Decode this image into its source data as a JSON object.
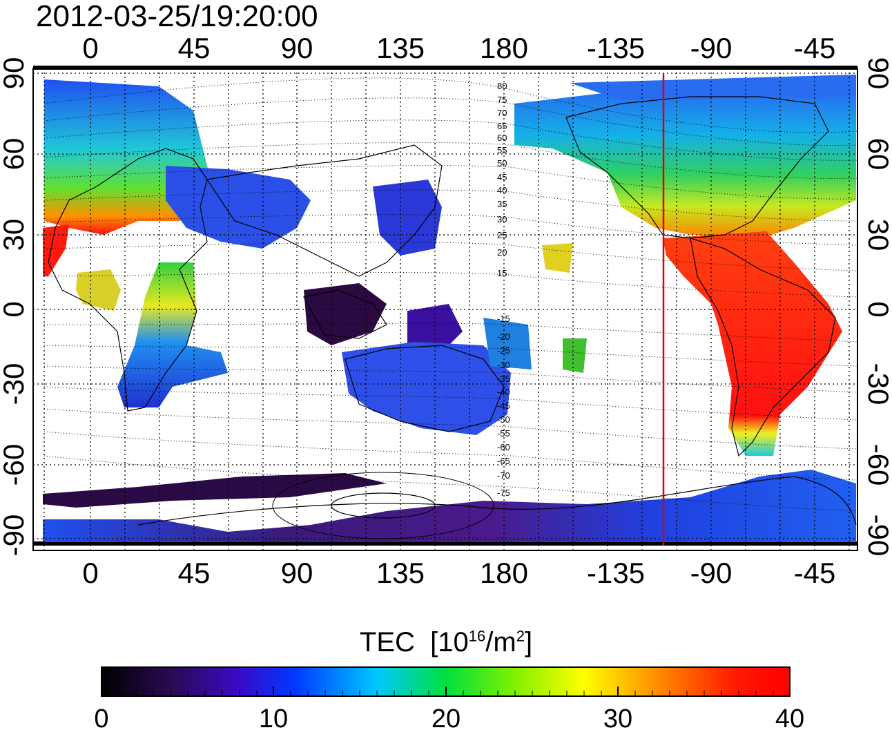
{
  "title": "2012-03-25/19:20:00",
  "map": {
    "lon_ticks": [
      "0",
      "45",
      "90",
      "135",
      "180",
      "-135",
      "-90",
      "-45"
    ],
    "lat_ticks": [
      "90",
      "60",
      "30",
      "0",
      "-30",
      "-60",
      "-90"
    ],
    "terminator_lon": -107,
    "mlat_labels_north": [
      "80",
      "75",
      "70",
      "65",
      "60",
      "55",
      "50",
      "45",
      "40",
      "35",
      "30",
      "25",
      "20",
      "15"
    ],
    "mlat_labels_south": [
      "-15",
      "-20",
      "-25",
      "-30",
      "-35",
      "-40",
      "-45",
      "-50",
      "-55",
      "-60",
      "-65",
      "-70",
      "-75"
    ]
  },
  "colorbar": {
    "label": "TEC",
    "unit_pre": "[10",
    "unit_exp": "16",
    "unit_mid": "/m",
    "unit_exp2": "2",
    "unit_post": "]",
    "ticks": [
      "0",
      "10",
      "20",
      "30",
      "40"
    ],
    "range": [
      0,
      40
    ],
    "colors": [
      "#000000",
      "#3a0a6e",
      "#0030ff",
      "#00e8ff",
      "#00e000",
      "#ffff00",
      "#ff8000",
      "#ff0000"
    ]
  }
}
